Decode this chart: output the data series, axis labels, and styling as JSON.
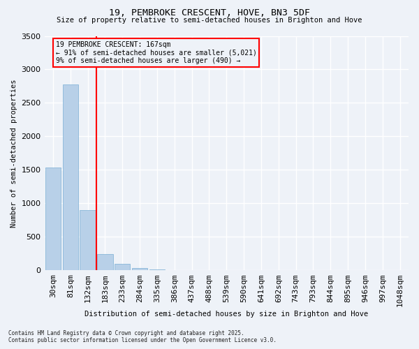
{
  "title_line1": "19, PEMBROKE CRESCENT, HOVE, BN3 5DF",
  "title_line2": "Size of property relative to semi-detached houses in Brighton and Hove",
  "xlabel": "Distribution of semi-detached houses by size in Brighton and Hove",
  "ylabel": "Number of semi-detached properties",
  "bar_color": "#b8d0e8",
  "bar_edge_color": "#7aafd4",
  "categories": [
    "30sqm",
    "81sqm",
    "132sqm",
    "183sqm",
    "233sqm",
    "284sqm",
    "335sqm",
    "386sqm",
    "437sqm",
    "488sqm",
    "539sqm",
    "590sqm",
    "641sqm",
    "692sqm",
    "743sqm",
    "793sqm",
    "844sqm",
    "895sqm",
    "946sqm",
    "997sqm",
    "1048sqm"
  ],
  "values": [
    1540,
    2780,
    900,
    240,
    95,
    38,
    18,
    8,
    0,
    0,
    0,
    0,
    0,
    0,
    0,
    0,
    0,
    0,
    0,
    0,
    0
  ],
  "ylim": [
    0,
    3500
  ],
  "yticks": [
    0,
    500,
    1000,
    1500,
    2000,
    2500,
    3000,
    3500
  ],
  "property_line_x": 2,
  "property_line_color": "red",
  "annotation_title": "19 PEMBROKE CRESCENT: 167sqm",
  "annotation_line1": "← 91% of semi-detached houses are smaller (5,021)",
  "annotation_line2": "9% of semi-detached houses are larger (490) →",
  "annotation_box_color": "red",
  "footnote1": "Contains HM Land Registry data © Crown copyright and database right 2025.",
  "footnote2": "Contains public sector information licensed under the Open Government Licence v3.0.",
  "background_color": "#eef2f8",
  "grid_color": "#ffffff"
}
